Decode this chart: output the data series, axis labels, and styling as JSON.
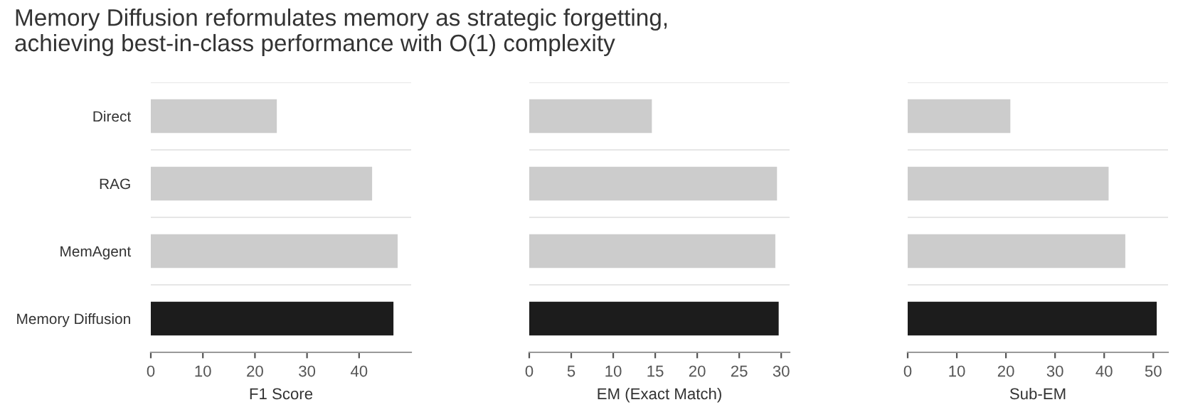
{
  "chart_data": [
    {
      "type": "bar",
      "orientation": "horizontal",
      "title": "Memory Diffusion reformulates memory as strategic forgetting,\nachieving best-in-class performance with O(1) complexity",
      "categories": [
        "Direct",
        "RAG",
        "MemAgent",
        "Memory Diffusion"
      ],
      "values": [
        24.2,
        42.5,
        47.4,
        46.6
      ],
      "colors": [
        "#cccccc",
        "#cccccc",
        "#cccccc",
        "#1c1c1c"
      ],
      "xlabel": "F1 Score",
      "xlim": [
        0,
        50
      ],
      "xticks": [
        0,
        10,
        20,
        30,
        40
      ],
      "grid": "y"
    },
    {
      "type": "bar",
      "orientation": "horizontal",
      "categories": [
        null,
        null,
        null,
        null
      ],
      "values": [
        14.6,
        29.5,
        29.3,
        29.7
      ],
      "colors": [
        "#cccccc",
        "#cccccc",
        "#cccccc",
        "#1c1c1c"
      ],
      "xlabel": "EM (Exact Match)",
      "xlim": [
        0,
        31
      ],
      "xticks": [
        0,
        5,
        10,
        15,
        20,
        25,
        30
      ],
      "grid": "y"
    },
    {
      "type": "bar",
      "orientation": "horizontal",
      "categories": [
        null,
        null,
        null,
        null
      ],
      "values": [
        20.9,
        40.9,
        44.3,
        50.7
      ],
      "colors": [
        "#cccccc",
        "#cccccc",
        "#cccccc",
        "#1c1c1c"
      ],
      "xlabel": "Sub-EM",
      "xlim": [
        0,
        53
      ],
      "xticks": [
        0,
        10,
        20,
        30,
        40,
        50
      ],
      "grid": "y"
    }
  ]
}
